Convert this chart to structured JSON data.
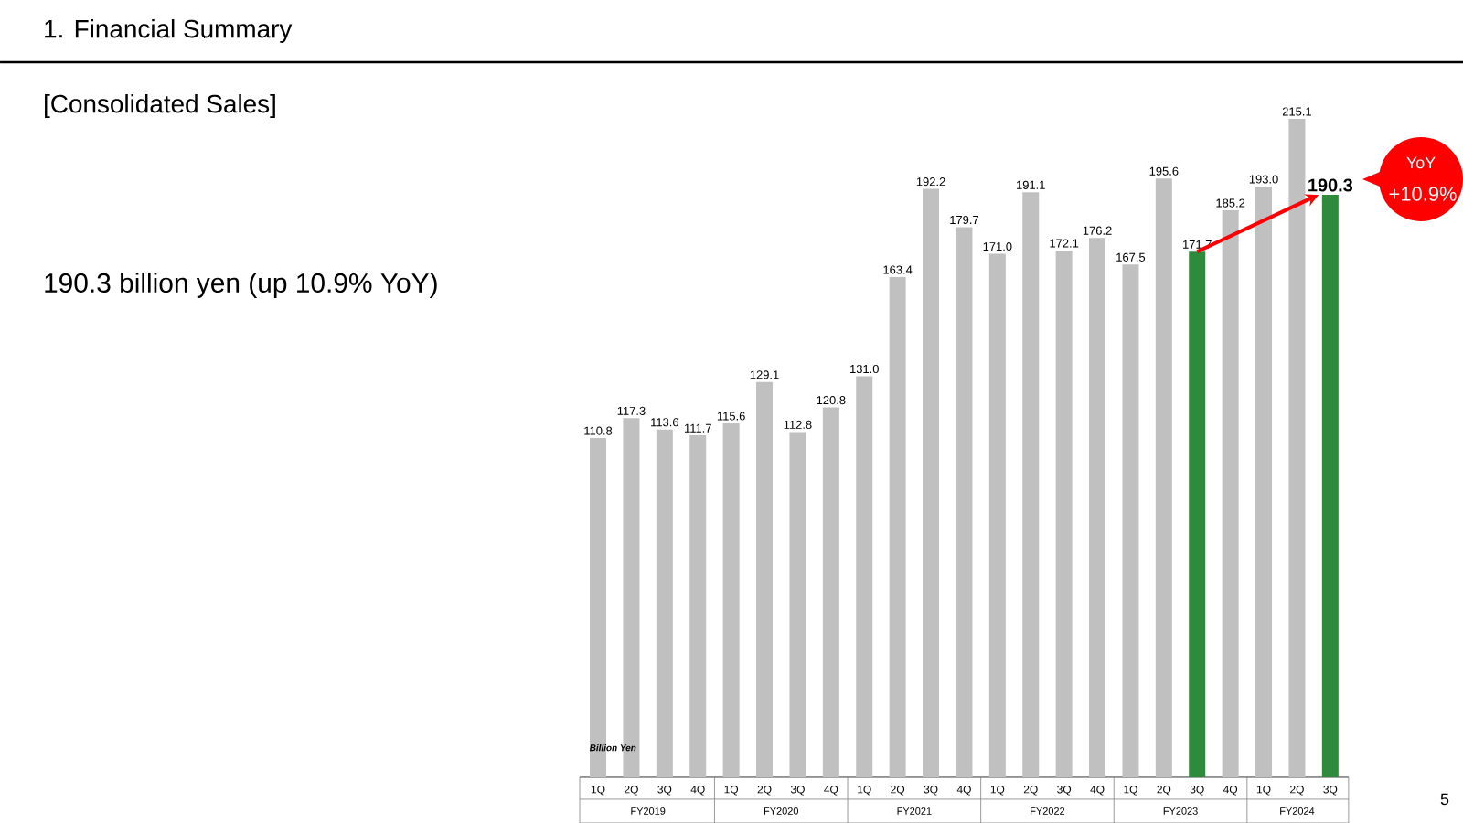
{
  "chart_data": {
    "type": "bar",
    "title": "1.  Financial Summary",
    "subtitle": "[Consolidated Sales]",
    "ylabel": "Billion Yen",
    "categories": [
      "1Q",
      "2Q",
      "3Q",
      "4Q",
      "1Q",
      "2Q",
      "3Q",
      "4Q",
      "1Q",
      "2Q",
      "3Q",
      "4Q",
      "1Q",
      "2Q",
      "3Q",
      "4Q",
      "1Q",
      "2Q",
      "3Q",
      "4Q",
      "1Q",
      "2Q",
      "3Q"
    ],
    "values": [
      110.8,
      117.3,
      113.6,
      111.7,
      115.6,
      129.1,
      112.8,
      120.8,
      131.0,
      163.4,
      192.2,
      179.7,
      171.0,
      191.1,
      172.1,
      176.2,
      167.5,
      195.6,
      171.7,
      185.2,
      193.0,
      215.1,
      190.3
    ],
    "colors": [
      "#c0c0c0",
      "#c0c0c0",
      "#c0c0c0",
      "#c0c0c0",
      "#c0c0c0",
      "#c0c0c0",
      "#c0c0c0",
      "#c0c0c0",
      "#c0c0c0",
      "#c0c0c0",
      "#c0c0c0",
      "#c0c0c0",
      "#c0c0c0",
      "#c0c0c0",
      "#c0c0c0",
      "#c0c0c0",
      "#c0c0c0",
      "#c0c0c0",
      "#2e8b3c",
      "#c0c0c0",
      "#c0c0c0",
      "#c0c0c0",
      "#2e8b3c"
    ],
    "value_labels": [
      "110.8",
      "117.3",
      "113.6",
      "111.7",
      "115.6",
      "129.1",
      "112.8",
      "120.8",
      "131.0",
      "163.4",
      "192.2",
      "179.7",
      "171.0",
      "191.1",
      "172.1",
      "176.2",
      "167.5",
      "195.6",
      "171.7",
      "185.2",
      "193.0",
      "215.1",
      "190.3"
    ],
    "annotations": [
      "190.3 billion yen (up 10.9% YoY)",
      "YoY",
      "+10.9%",
      "5",
      "FY2019",
      "FY2020",
      "FY2021",
      "FY2022",
      "FY2023",
      "FY2024"
    ]
  }
}
